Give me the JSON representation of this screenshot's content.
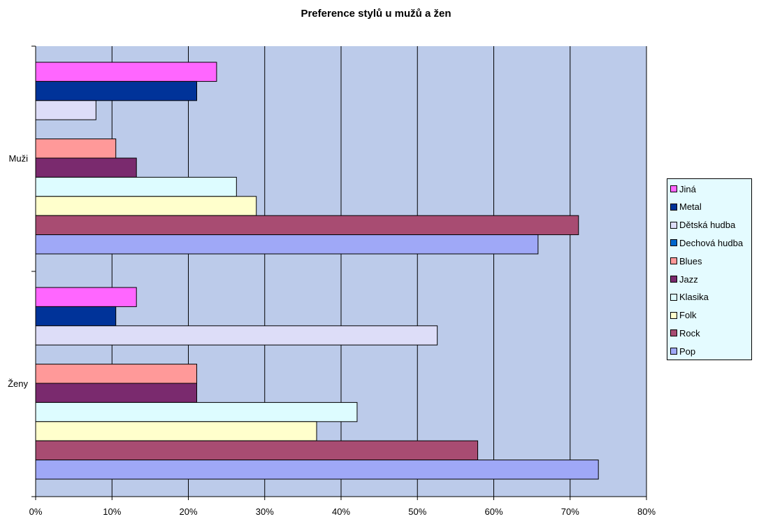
{
  "chart_data": {
    "type": "bar",
    "orientation": "horizontal",
    "title": "Preference stylů u mužů a žen",
    "categories": [
      "Muži",
      "Ženy"
    ],
    "x_ticks": [
      "0%",
      "10%",
      "20%",
      "30%",
      "40%",
      "50%",
      "60%",
      "70%",
      "80%"
    ],
    "xlim": [
      0,
      80
    ],
    "grid": true,
    "legend_position": "right",
    "plot_background": "#bccbea",
    "series": [
      {
        "name": "Jiná",
        "color": "#ff66ff",
        "values": [
          23.7,
          13.2
        ]
      },
      {
        "name": "Metal",
        "color": "#003399",
        "values": [
          21.1,
          10.5
        ]
      },
      {
        "name": "Dětská hudba",
        "color": "#ddddf8",
        "values": [
          7.9,
          52.6
        ]
      },
      {
        "name": "Dechová hudba",
        "color": "#0066cc",
        "values": [
          0,
          0
        ]
      },
      {
        "name": "Blues",
        "color": "#ff9999",
        "values": [
          10.5,
          21.1
        ]
      },
      {
        "name": "Jazz",
        "color": "#7a2a6e",
        "values": [
          13.2,
          21.1
        ]
      },
      {
        "name": "Klasika",
        "color": "#ddfcff",
        "values": [
          26.3,
          42.1
        ]
      },
      {
        "name": "Folk",
        "color": "#ffffcc",
        "values": [
          28.9,
          36.8
        ]
      },
      {
        "name": "Rock",
        "color": "#a84c72",
        "values": [
          71.1,
          57.9
        ]
      },
      {
        "name": "Pop",
        "color": "#9fa8f7",
        "values": [
          65.8,
          73.7
        ]
      }
    ]
  }
}
